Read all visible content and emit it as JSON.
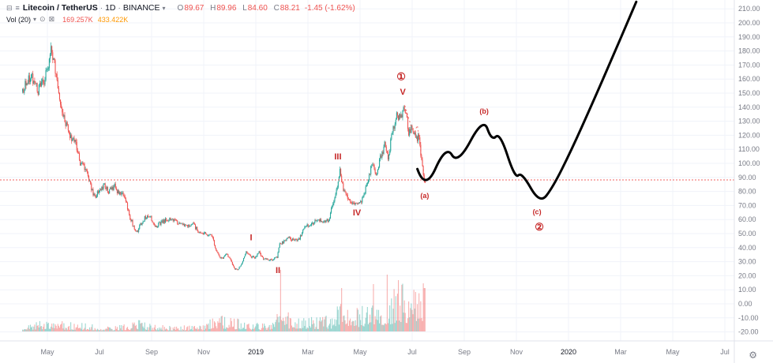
{
  "header": {
    "symbol": "Litecoin / TetherUS",
    "sep": "·",
    "interval": "1D",
    "exchange": "BINANCE",
    "ohlc": {
      "o_label": "O",
      "o": "89.67",
      "h_label": "H",
      "h": "89.96",
      "l_label": "L",
      "l": "84.60",
      "c_label": "C",
      "c": "88.21",
      "change": "-1.45 (-1.62%)"
    },
    "indicator": {
      "name": "Vol (20)",
      "value": "169.257K",
      "ma": "433.422K"
    }
  },
  "icons": {
    "collapse": "⊟",
    "menu": "≡",
    "caret_down": "▾",
    "eye": "⊙",
    "remove": "⊠",
    "gear": "⚙"
  },
  "colors": {
    "up": "#26a69a",
    "down": "#ef5350",
    "wave": "#c62828",
    "projection": "#000000",
    "price_line": "#ef5350",
    "grid": "#f0f3fa",
    "axis_text": "#787b86",
    "axis_text_strong": "#131722",
    "axis_border": "#e0e3eb",
    "vol_value": "#ef5350",
    "vol_ma": "#ff9800"
  },
  "price_axis": {
    "ticks": [
      "210.00",
      "200.00",
      "190.00",
      "180.00",
      "170.00",
      "160.00",
      "150.00",
      "140.00",
      "130.00",
      "120.00",
      "110.00",
      "100.00",
      "90.00",
      "80.00",
      "70.00",
      "60.00",
      "50.00",
      "40.00",
      "30.00",
      "20.00",
      "10.00",
      "0.00",
      "-10.00",
      "-20.00"
    ]
  },
  "time_axis": {
    "ticks": [
      {
        "label": "May",
        "m": 0
      },
      {
        "label": "Jul",
        "m": 2
      },
      {
        "label": "Sep",
        "m": 4
      },
      {
        "label": "Nov",
        "m": 6
      },
      {
        "label": "2019",
        "m": 8,
        "year": true
      },
      {
        "label": "Mar",
        "m": 10
      },
      {
        "label": "May",
        "m": 12
      },
      {
        "label": "Jul",
        "m": 14
      },
      {
        "label": "Sep",
        "m": 16
      },
      {
        "label": "Nov",
        "m": 18
      },
      {
        "label": "2020",
        "m": 20,
        "year": true
      },
      {
        "label": "Mar",
        "m": 22
      },
      {
        "label": "May",
        "m": 24
      },
      {
        "label": "Jul",
        "m": 26
      }
    ]
  },
  "chart_data": {
    "type": "candlestick",
    "title": "Litecoin / TetherUS 1D BINANCE with Elliott-wave projection",
    "ylim": [
      -20,
      210
    ],
    "current_price": 88.21,
    "price_path": [
      [
        -0.95,
        151
      ],
      [
        -0.6,
        162
      ],
      [
        -0.35,
        152
      ],
      [
        -0.1,
        158
      ],
      [
        0.1,
        170
      ],
      [
        0.17,
        182
      ],
      [
        0.3,
        172
      ],
      [
        0.45,
        148
      ],
      [
        0.6,
        138
      ],
      [
        0.75,
        128
      ],
      [
        0.9,
        120
      ],
      [
        1.0,
        118
      ],
      [
        1.15,
        112
      ],
      [
        1.3,
        100
      ],
      [
        1.5,
        97
      ],
      [
        1.7,
        83
      ],
      [
        1.85,
        76
      ],
      [
        2.0,
        80
      ],
      [
        2.2,
        84
      ],
      [
        2.4,
        80
      ],
      [
        2.6,
        84
      ],
      [
        2.8,
        78
      ],
      [
        3.0,
        77
      ],
      [
        3.2,
        62
      ],
      [
        3.45,
        50
      ],
      [
        3.6,
        56
      ],
      [
        3.8,
        62
      ],
      [
        4.0,
        62
      ],
      [
        4.15,
        55
      ],
      [
        4.35,
        57
      ],
      [
        4.6,
        60
      ],
      [
        4.8,
        61
      ],
      [
        5.0,
        58
      ],
      [
        5.3,
        55
      ],
      [
        5.6,
        57
      ],
      [
        5.9,
        50
      ],
      [
        6.1,
        50
      ],
      [
        6.35,
        48
      ],
      [
        6.45,
        42
      ],
      [
        6.6,
        34
      ],
      [
        6.75,
        32
      ],
      [
        6.9,
        36
      ],
      [
        7.1,
        30
      ],
      [
        7.2,
        25
      ],
      [
        7.35,
        24
      ],
      [
        7.5,
        29
      ],
      [
        7.65,
        37
      ],
      [
        7.8,
        34
      ],
      [
        8.0,
        33
      ],
      [
        8.15,
        37
      ],
      [
        8.3,
        32
      ],
      [
        8.6,
        31
      ],
      [
        8.85,
        33
      ],
      [
        8.95,
        43
      ],
      [
        9.1,
        44
      ],
      [
        9.3,
        47
      ],
      [
        9.5,
        45
      ],
      [
        9.7,
        46
      ],
      [
        9.9,
        55
      ],
      [
        10.1,
        56
      ],
      [
        10.35,
        59
      ],
      [
        10.6,
        59
      ],
      [
        10.85,
        60
      ],
      [
        11.05,
        76
      ],
      [
        11.2,
        88
      ],
      [
        11.25,
        95
      ],
      [
        11.4,
        80
      ],
      [
        11.55,
        75
      ],
      [
        11.7,
        72
      ],
      [
        11.9,
        70
      ],
      [
        12.1,
        74
      ],
      [
        12.35,
        88
      ],
      [
        12.5,
        100
      ],
      [
        12.65,
        92
      ],
      [
        12.8,
        103
      ],
      [
        13.0,
        114
      ],
      [
        13.1,
        103
      ],
      [
        13.3,
        125
      ],
      [
        13.45,
        134
      ],
      [
        13.6,
        133
      ],
      [
        13.72,
        141
      ],
      [
        13.8,
        136
      ],
      [
        13.9,
        122
      ],
      [
        14.0,
        126
      ],
      [
        14.15,
        119
      ],
      [
        14.3,
        117
      ],
      [
        14.4,
        100
      ],
      [
        14.5,
        88
      ]
    ],
    "volume_envelope": [
      [
        -0.95,
        6
      ],
      [
        0.2,
        12
      ],
      [
        0.5,
        9
      ],
      [
        1.0,
        8
      ],
      [
        1.5,
        7
      ],
      [
        2.0,
        6
      ],
      [
        2.5,
        5
      ],
      [
        3.0,
        6
      ],
      [
        3.45,
        10
      ],
      [
        4.0,
        6
      ],
      [
        4.5,
        5
      ],
      [
        5.0,
        5
      ],
      [
        5.5,
        5
      ],
      [
        6.0,
        6
      ],
      [
        6.45,
        16
      ],
      [
        6.8,
        13
      ],
      [
        7.2,
        11
      ],
      [
        7.6,
        9
      ],
      [
        8.0,
        8
      ],
      [
        8.6,
        7
      ],
      [
        8.95,
        26
      ],
      [
        9.3,
        14
      ],
      [
        9.7,
        12
      ],
      [
        10.1,
        13
      ],
      [
        10.5,
        12
      ],
      [
        10.9,
        14
      ],
      [
        11.25,
        34
      ],
      [
        11.6,
        26
      ],
      [
        11.9,
        22
      ],
      [
        12.2,
        24
      ],
      [
        12.5,
        36
      ],
      [
        12.8,
        30
      ],
      [
        13.1,
        34
      ],
      [
        13.45,
        44
      ],
      [
        13.72,
        40
      ],
      [
        14.0,
        36
      ],
      [
        14.3,
        38
      ],
      [
        14.5,
        42
      ]
    ],
    "volume_spikes": [
      [
        8.95,
        78
      ],
      [
        11.28,
        55
      ],
      [
        12.52,
        60
      ],
      [
        13.05,
        72
      ],
      [
        13.47,
        65
      ],
      [
        14.45,
        55
      ]
    ],
    "projection_line": [
      [
        14.2,
        96
      ],
      [
        14.5,
        80
      ],
      [
        15.3,
        113
      ],
      [
        15.75,
        99
      ],
      [
        16.73,
        133
      ],
      [
        17.05,
        116
      ],
      [
        17.37,
        122
      ],
      [
        17.95,
        89
      ],
      [
        18.2,
        94
      ],
      [
        18.9,
        71
      ],
      [
        19.4,
        83
      ],
      [
        20.1,
        109
      ],
      [
        20.9,
        142
      ],
      [
        21.7,
        176
      ],
      [
        22.3,
        202
      ],
      [
        22.6,
        215
      ]
    ],
    "guide_dotted": [
      [
        13.72,
        141
      ],
      [
        14.05,
        121
      ],
      [
        14.2,
        127
      ],
      [
        14.5,
        86
      ]
    ],
    "wave_labels": [
      {
        "text": "I",
        "m": 7.82,
        "p": 47
      },
      {
        "text": "II",
        "m": 8.85,
        "p": 23.5
      },
      {
        "text": "III",
        "m": 11.15,
        "p": 104.5
      },
      {
        "text": "IV",
        "m": 11.88,
        "p": 64.5
      },
      {
        "text": "V",
        "m": 13.64,
        "p": 150.5
      },
      {
        "text": "①",
        "m": 13.58,
        "p": 161,
        "size": 13
      },
      {
        "text": "(a)",
        "m": 14.48,
        "p": 77,
        "size": 9
      },
      {
        "text": "(b)",
        "m": 16.76,
        "p": 137,
        "size": 9
      },
      {
        "text": "(c)",
        "m": 18.79,
        "p": 65.5,
        "size": 9
      },
      {
        "text": "②",
        "m": 18.88,
        "p": 54,
        "size": 13
      }
    ]
  }
}
